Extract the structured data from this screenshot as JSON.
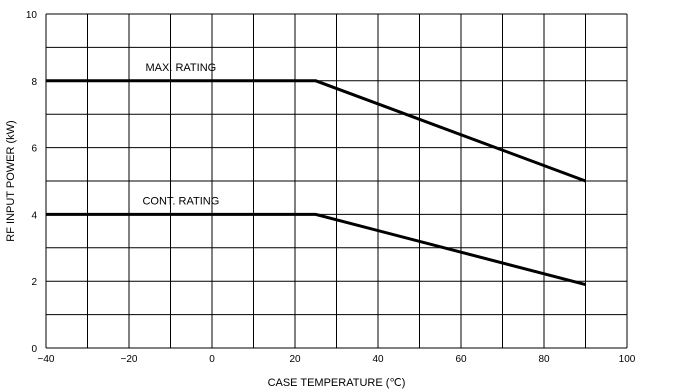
{
  "chart_data": {
    "type": "line",
    "title": "",
    "xlabel": "CASE TEMPERATURE (℃)",
    "ylabel": "RF INPUT POWER (kW)",
    "xlim": [
      -40,
      100
    ],
    "ylim": [
      0,
      10
    ],
    "x_ticks": [
      -40,
      -20,
      0,
      20,
      40,
      60,
      80,
      100
    ],
    "y_ticks": [
      0,
      2,
      4,
      6,
      8,
      10
    ],
    "x_minor_step": 10,
    "y_minor_step": 1,
    "grid": true,
    "legend": "none",
    "series": [
      {
        "name": "MAX. RATING",
        "x": [
          -40,
          25,
          90
        ],
        "y": [
          8,
          8,
          5
        ]
      },
      {
        "name": "CONT. RATING",
        "x": [
          -40,
          25,
          90
        ],
        "y": [
          4,
          4,
          1.9
        ]
      }
    ]
  }
}
